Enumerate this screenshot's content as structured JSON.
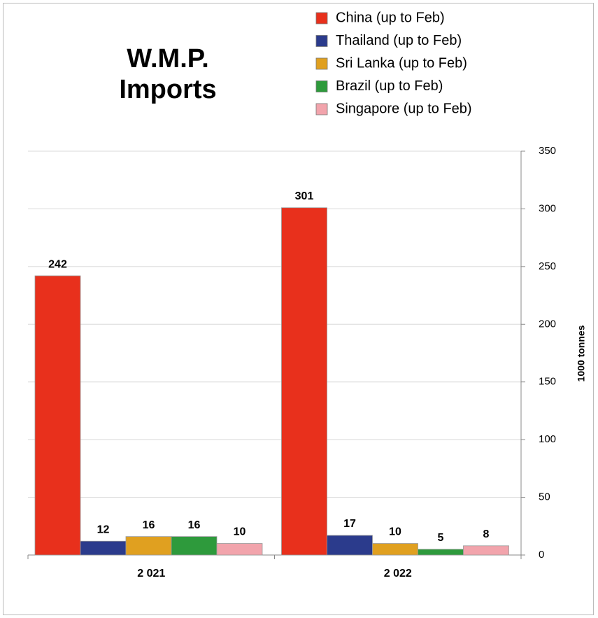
{
  "chart_data": {
    "type": "bar",
    "title": "W.M.P. Imports",
    "categories": [
      "2 021",
      "2 022"
    ],
    "series": [
      {
        "name": "China (up to Feb)",
        "color": "#e8301c",
        "values": [
          242,
          301
        ]
      },
      {
        "name": "Thailand (up to Feb)",
        "color": "#2b3b8c",
        "values": [
          12,
          17
        ]
      },
      {
        "name": "Sri Lanka (up to Feb)",
        "color": "#e0a020",
        "values": [
          16,
          10
        ]
      },
      {
        "name": "Brazil (up to Feb)",
        "color": "#2e9a3c",
        "values": [
          16,
          5
        ]
      },
      {
        "name": "Singapore (up to Feb)",
        "color": "#f2a4ac",
        "values": [
          10,
          8
        ]
      }
    ],
    "y_axis_label": "1000 tonnes",
    "ylim": [
      0,
      350
    ],
    "yticks": [
      0,
      50,
      100,
      150,
      200,
      250,
      300,
      350
    ],
    "grid": true,
    "legend": "top-right"
  }
}
